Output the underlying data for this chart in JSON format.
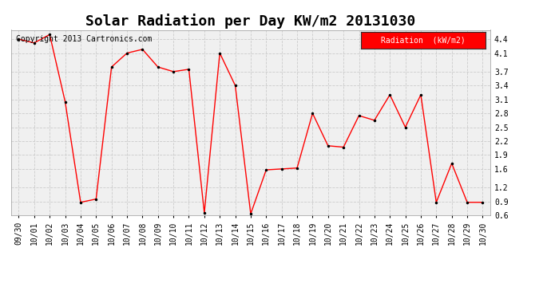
{
  "title": "Solar Radiation per Day KW/m2 20131030",
  "copyright_text": "Copyright 2013 Cartronics.com",
  "legend_label": "Radiation  (kW/m2)",
  "dates": [
    "09/30",
    "10/01",
    "10/02",
    "10/03",
    "10/04",
    "10/05",
    "10/06",
    "10/07",
    "10/08",
    "10/09",
    "10/10",
    "10/11",
    "10/12",
    "10/13",
    "10/14",
    "10/15",
    "10/16",
    "10/17",
    "10/18",
    "10/19",
    "10/20",
    "10/21",
    "10/22",
    "10/23",
    "10/24",
    "10/25",
    "10/26",
    "10/27",
    "10/28",
    "10/29",
    "10/30"
  ],
  "values": [
    4.4,
    4.32,
    4.5,
    3.05,
    0.88,
    0.95,
    3.8,
    4.1,
    4.18,
    3.8,
    3.7,
    3.75,
    0.65,
    4.1,
    3.4,
    0.63,
    1.58,
    1.6,
    1.62,
    2.8,
    2.1,
    2.07,
    2.75,
    2.65,
    3.2,
    2.5,
    3.2,
    0.88,
    1.72,
    0.88,
    0.88
  ],
  "line_color": "red",
  "marker": ".",
  "marker_color": "black",
  "ylim_min": 0.6,
  "ylim_max": 4.6,
  "yticks": [
    0.6,
    0.9,
    1.2,
    1.6,
    1.9,
    2.2,
    2.5,
    2.8,
    3.1,
    3.4,
    3.7,
    4.1,
    4.4
  ],
  "ytick_labels": [
    "0.6",
    "0.9",
    "1.2",
    "1.6",
    "1.9",
    "2.2",
    "2.5",
    "2.8",
    "3.1",
    "3.4",
    "3.7",
    "4.1",
    "4.4"
  ],
  "background_color": "#ffffff",
  "plot_bg_color": "#f0f0f0",
  "grid_color": "#cccccc",
  "title_fontsize": 13,
  "tick_fontsize": 7,
  "copyright_fontsize": 7,
  "legend_bg": "red",
  "legend_text_color": "white",
  "legend_fontsize": 7,
  "figwidth": 6.9,
  "figheight": 3.75,
  "dpi": 100
}
